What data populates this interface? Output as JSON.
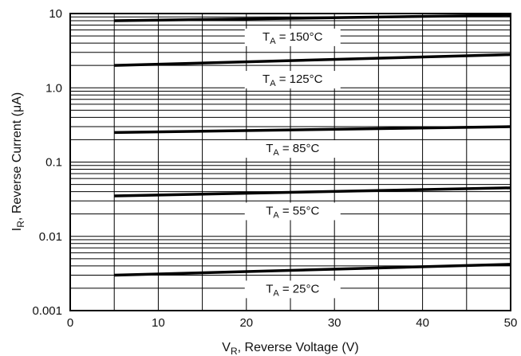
{
  "chart_data": {
    "type": "line",
    "xlabel": "",
    "xlabel_parts": [
      "V",
      "R",
      ", Reverse Voltage (V)"
    ],
    "ylabel": "",
    "ylabel_parts": [
      "I",
      "R",
      ", Reverse Current (μA)"
    ],
    "xlim": [
      0,
      50
    ],
    "ylim": [
      0.001,
      10
    ],
    "yscale": "log",
    "grid": true,
    "xticks": [
      0,
      10,
      20,
      30,
      40,
      50
    ],
    "xtick_labels": [
      "0",
      "10",
      "20",
      "30",
      "40",
      "50"
    ],
    "yticks": [
      0.001,
      0.01,
      0.1,
      1,
      10
    ],
    "ytick_labels": [
      "0.001",
      "0.01",
      "0.1",
      "1.0",
      "10"
    ],
    "series": [
      {
        "name": "",
        "label_parts": [
          "T",
          "A",
          " = 150°C"
        ],
        "x": [
          5,
          50
        ],
        "y": [
          8.0,
          9.5
        ]
      },
      {
        "name": "",
        "label_parts": [
          "T",
          "A",
          " = 125°C"
        ],
        "x": [
          5,
          50
        ],
        "y": [
          2.0,
          2.8
        ]
      },
      {
        "name": "",
        "label_parts": [
          "T",
          "A",
          " = 85°C"
        ],
        "x": [
          5,
          50
        ],
        "y": [
          0.25,
          0.3
        ]
      },
      {
        "name": "",
        "label_parts": [
          "T",
          "A",
          " = 55°C"
        ],
        "x": [
          5,
          50
        ],
        "y": [
          0.035,
          0.045
        ]
      },
      {
        "name": "",
        "label_parts": [
          "T",
          "A",
          " = 25°C"
        ],
        "x": [
          5,
          50
        ],
        "y": [
          0.003,
          0.0042
        ]
      }
    ]
  }
}
